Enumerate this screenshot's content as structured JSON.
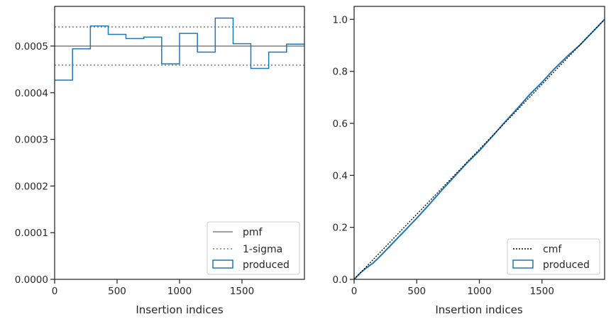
{
  "chart_data": [
    {
      "type": "histogram",
      "xlabel": "Insertion indices",
      "xlim": [
        0,
        2000
      ],
      "ylim": [
        0,
        0.000585
      ],
      "x_ticks": [
        0,
        500,
        1000,
        1500
      ],
      "x_tick_labels": [
        "0",
        "500",
        "1000",
        "1500"
      ],
      "y_ticks": [
        0,
        0.0001,
        0.0002,
        0.0003,
        0.0004,
        0.0005
      ],
      "y_tick_labels": [
        "0.0000",
        "0.0001",
        "0.0002",
        "0.0003",
        "0.0004",
        "0.0005"
      ],
      "pmf": 0.0005,
      "sigma_lower": 0.000459,
      "sigma_upper": 0.000541,
      "bin_edges": [
        0,
        143,
        286,
        429,
        571,
        714,
        857,
        1000,
        1143,
        1286,
        1429,
        1571,
        1714,
        1857,
        2000
      ],
      "values": [
        0.000427,
        0.000494,
        0.000543,
        0.000525,
        0.000516,
        0.000519,
        0.000462,
        0.000527,
        0.000487,
        0.00056,
        0.000505,
        0.000452,
        0.000487,
        0.000504
      ],
      "legend": [
        {
          "label": "pmf",
          "style": "solid-gray"
        },
        {
          "label": "1-sigma",
          "style": "dotted-gray"
        },
        {
          "label": "produced",
          "style": "patch-blue"
        }
      ],
      "legend_position": "lower-right",
      "colors": {
        "produced": "#1f77b4",
        "pmf": "#808080"
      }
    },
    {
      "type": "line",
      "xlabel": "Insertion indices",
      "xlim": [
        0,
        2000
      ],
      "ylim": [
        0,
        1.05
      ],
      "x_ticks": [
        0,
        500,
        1000,
        1500
      ],
      "x_tick_labels": [
        "0",
        "500",
        "1000",
        "1500"
      ],
      "y_ticks": [
        0.0,
        0.2,
        0.4,
        0.6,
        0.8,
        1.0
      ],
      "y_tick_labels": [
        "0.0",
        "0.2",
        "0.4",
        "0.6",
        "0.8",
        "1.0"
      ],
      "cmf": {
        "x": [
          0,
          2000
        ],
        "y": [
          0,
          1.0
        ]
      },
      "produced": {
        "x": [
          0,
          50,
          100,
          150,
          200,
          300,
          400,
          500,
          600,
          700,
          800,
          900,
          1000,
          1100,
          1200,
          1300,
          1400,
          1500,
          1600,
          1700,
          1800,
          1900,
          2000
        ],
        "y": [
          0,
          0.025,
          0.045,
          0.062,
          0.085,
          0.135,
          0.185,
          0.235,
          0.288,
          0.343,
          0.395,
          0.447,
          0.495,
          0.548,
          0.603,
          0.655,
          0.71,
          0.758,
          0.81,
          0.857,
          0.9,
          0.95,
          1.0
        ]
      },
      "legend": [
        {
          "label": "cmf",
          "style": "dotted-black"
        },
        {
          "label": "produced",
          "style": "patch-blue"
        }
      ],
      "legend_position": "lower-right",
      "colors": {
        "produced": "#1f77b4",
        "cmf": "#000000"
      }
    }
  ]
}
